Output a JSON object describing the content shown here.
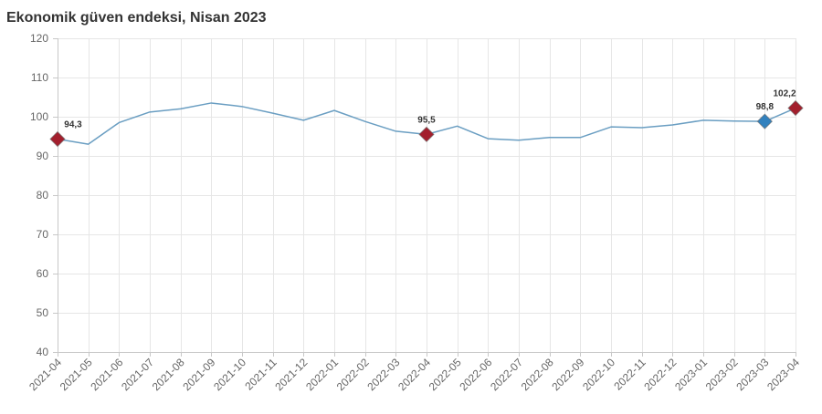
{
  "chart_data": {
    "type": "line",
    "title": "Ekonomik güven endeksi, Nisan 2023",
    "x": [
      "2021-04",
      "2021-05",
      "2021-06",
      "2021-07",
      "2021-08",
      "2021-09",
      "2021-10",
      "2021-11",
      "2021-12",
      "2022-01",
      "2022-02",
      "2022-03",
      "2022-04",
      "2022-05",
      "2022-06",
      "2022-07",
      "2022-08",
      "2022-09",
      "2022-10",
      "2022-11",
      "2022-12",
      "2023-01",
      "2023-02",
      "2023-03",
      "2023-04"
    ],
    "series": [
      {
        "values": [
          94.3,
          93.0,
          98.5,
          101.2,
          102.0,
          103.5,
          102.6,
          100.9,
          99.1,
          101.6,
          98.8,
          96.3,
          95.5,
          97.6,
          94.4,
          94.0,
          94.7,
          94.7,
          97.4,
          97.2,
          97.9,
          99.1,
          98.9,
          98.8,
          102.2
        ],
        "color": "#6a9ec2"
      }
    ],
    "ylim": [
      40,
      120
    ],
    "yticks": [
      40,
      50,
      60,
      70,
      80,
      90,
      100,
      110,
      120
    ],
    "grid": true,
    "markers": [
      {
        "x": "2021-04",
        "color": "#a31f2d"
      },
      {
        "x": "2022-04",
        "color": "#a31f2d"
      },
      {
        "x": "2023-03",
        "color": "#3181be"
      },
      {
        "x": "2023-04",
        "color": "#a31f2d"
      }
    ],
    "data_labels": [
      {
        "x": "2021-04",
        "text": "94,3"
      },
      {
        "x": "2022-04",
        "text": "95,5"
      },
      {
        "x": "2023-03",
        "text": "98,8"
      },
      {
        "x": "2023-04",
        "text": "102,2"
      }
    ]
  }
}
